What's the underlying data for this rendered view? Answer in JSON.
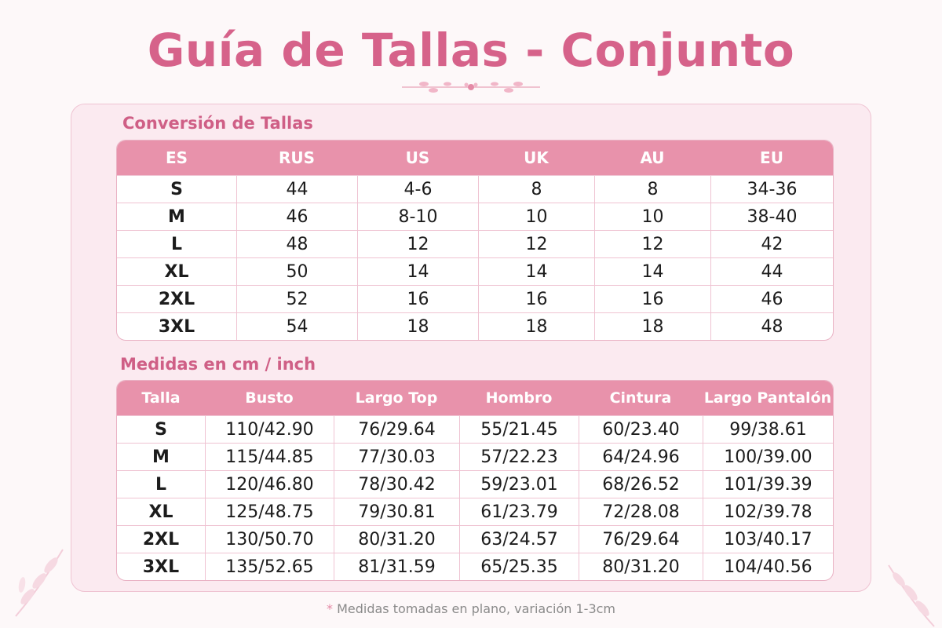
{
  "title": "Guía de Tallas - Conjunto",
  "conversion": {
    "heading": "Conversión de Tallas",
    "headers": [
      "ES",
      "RUS",
      "US",
      "UK",
      "AU",
      "EU"
    ],
    "rows": [
      [
        "S",
        "44",
        "4-6",
        "8",
        "8",
        "34-36"
      ],
      [
        "M",
        "46",
        "8-10",
        "10",
        "10",
        "38-40"
      ],
      [
        "L",
        "48",
        "12",
        "12",
        "12",
        "42"
      ],
      [
        "XL",
        "50",
        "14",
        "14",
        "14",
        "44"
      ],
      [
        "2XL",
        "52",
        "16",
        "16",
        "16",
        "46"
      ],
      [
        "3XL",
        "54",
        "18",
        "18",
        "18",
        "48"
      ]
    ]
  },
  "measures": {
    "heading": "Medidas en cm / inch",
    "headers": [
      "Talla",
      "Busto",
      "Largo Top",
      "Hombro",
      "Cintura",
      "Largo Pantalón"
    ],
    "rows": [
      [
        "S",
        "110/42.90",
        "76/29.64",
        "55/21.45",
        "60/23.40",
        "99/38.61"
      ],
      [
        "M",
        "115/44.85",
        "77/30.03",
        "57/22.23",
        "64/24.96",
        "100/39.00"
      ],
      [
        "L",
        "120/46.80",
        "78/30.42",
        "59/23.01",
        "68/26.52",
        "101/39.39"
      ],
      [
        "XL",
        "125/48.75",
        "79/30.81",
        "61/23.79",
        "72/28.08",
        "102/39.78"
      ],
      [
        "2XL",
        "130/50.70",
        "80/31.20",
        "63/24.57",
        "76/29.64",
        "103/40.17"
      ],
      [
        "3XL",
        "135/52.65",
        "81/31.59",
        "65/25.35",
        "80/31.20",
        "104/40.56"
      ]
    ]
  },
  "footnote": {
    "star": "*",
    "text": "Medidas tomadas en plano, variación 1-3cm"
  },
  "colors": {
    "title": "#d6628a",
    "header_bg": "#e892ab",
    "panel_bg": "#fbeaf0"
  }
}
